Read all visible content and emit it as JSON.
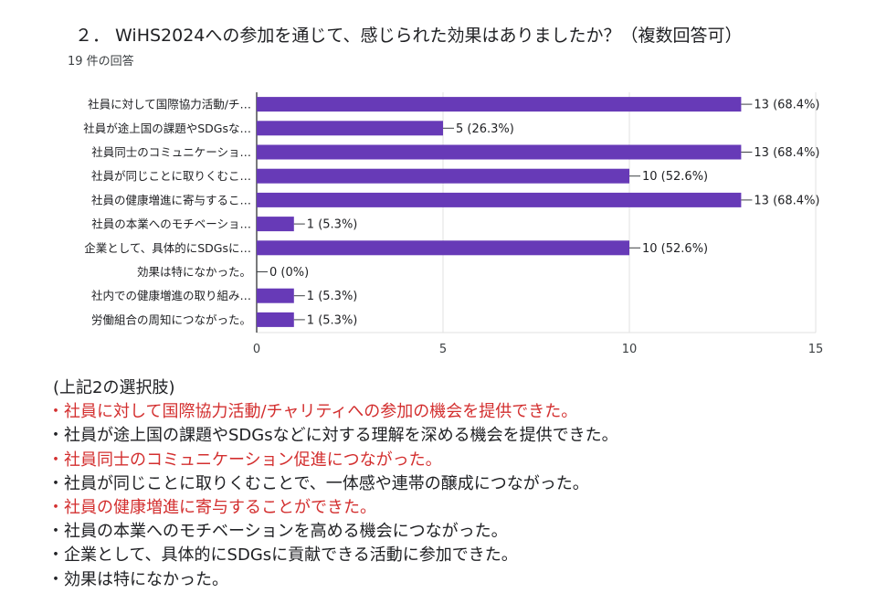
{
  "title": "２． WiHS2024への参加を通じて、感じられた効果はありましたか？（複数回答可）",
  "response_count": "19 件の回答",
  "chart_data": {
    "type": "bar",
    "orientation": "horizontal",
    "categories": [
      "社員に対して国際協力活動/チ…",
      "社員が途上国の課題やSDGsな…",
      "社員同士のコミュニケーショ…",
      "社員が同じことに取りくむこ…",
      "社員の健康増進に寄与するこ…",
      "社員の本業へのモチベーショ…",
      "企業として、具体的にSDGsに…",
      "効果は特になかった。",
      "社内での健康増進の取り組み…",
      "労働組合の周知につながった。"
    ],
    "values": [
      13,
      5,
      13,
      10,
      13,
      1,
      10,
      0,
      1,
      1
    ],
    "value_labels": [
      "13 (68.4%)",
      "5 (26.3%)",
      "13 (68.4%)",
      "10 (52.6%)",
      "13 (68.4%)",
      "1 (5.3%)",
      "10 (52.6%)",
      "0 (0%)",
      "1 (5.3%)",
      "1 (5.3%)"
    ],
    "x_ticks": [
      0,
      5,
      10,
      15
    ],
    "xlim": [
      0,
      15
    ],
    "bar_color": "#673ab7",
    "grid": true
  },
  "legend": {
    "heading": "(上記2の選択肢)",
    "items": [
      {
        "text": "・社員に対して国際協力活動/チャリティへの参加の機会を提供できた。",
        "color": "#d32f2f"
      },
      {
        "text": "・社員が途上国の課題やSDGsなどに対する理解を深める機会を提供できた。",
        "color": "#202124"
      },
      {
        "text": "・社員同士のコミュニケーション促進につながった。",
        "color": "#d32f2f"
      },
      {
        "text": "・社員が同じことに取りくむことで、一体感や連帯の醸成につながった。",
        "color": "#202124"
      },
      {
        "text": "・社員の健康増進に寄与することができた。",
        "color": "#d32f2f"
      },
      {
        "text": "・社員の本業へのモチベーションを高める機会につながった。",
        "color": "#202124"
      },
      {
        "text": "・企業として、具体的にSDGsに貢献できる活動に参加できた。",
        "color": "#202124"
      },
      {
        "text": "・効果は特になかった。",
        "color": "#202124"
      }
    ]
  }
}
